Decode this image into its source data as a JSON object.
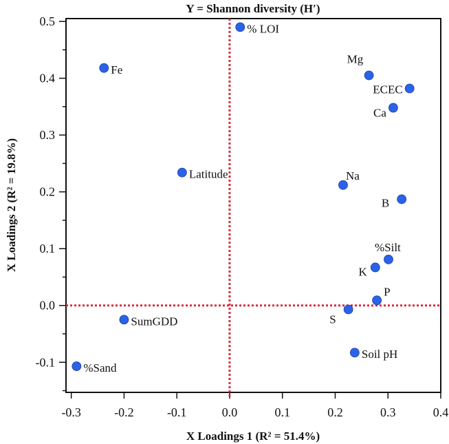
{
  "chart_data": {
    "type": "scatter",
    "title": "Y = Shannon diversity (H′)",
    "xlabel": "X Loadings 1 (R² = 51.4%)",
    "ylabel": "X Loadings 2 (R² = 19.8%)",
    "xlim": [
      -0.31,
      0.4
    ],
    "ylim": [
      -0.153,
      0.505
    ],
    "xticks": [
      "-0.3",
      "-0.2",
      "-0.1",
      "0.0",
      "0.1",
      "0.2",
      "0.3",
      "0.4"
    ],
    "yticks": [
      "-0.1",
      "0.0",
      "0.1",
      "0.2",
      "0.3",
      "0.4",
      "0.5"
    ],
    "grid": false,
    "reference_lines": {
      "x": 0,
      "y": 0,
      "color": "#e0283c",
      "style": "dotted"
    },
    "marker_color": "#2b63e8",
    "points": [
      {
        "label": "% LOI",
        "x": 0.02,
        "y": 0.49
      },
      {
        "label": "Fe",
        "x": -0.238,
        "y": 0.418
      },
      {
        "label": "Mg",
        "x": 0.264,
        "y": 0.405
      },
      {
        "label": "ECEC",
        "x": 0.341,
        "y": 0.382
      },
      {
        "label": "Ca",
        "x": 0.31,
        "y": 0.348
      },
      {
        "label": "Latitude",
        "x": -0.09,
        "y": 0.234
      },
      {
        "label": "Na",
        "x": 0.215,
        "y": 0.212
      },
      {
        "label": "B",
        "x": 0.326,
        "y": 0.187
      },
      {
        "label": "%Silt",
        "x": 0.301,
        "y": 0.081
      },
      {
        "label": "K",
        "x": 0.276,
        "y": 0.067
      },
      {
        "label": "P",
        "x": 0.279,
        "y": 0.009
      },
      {
        "label": "S",
        "x": 0.225,
        "y": -0.007
      },
      {
        "label": "SumGDD",
        "x": -0.2,
        "y": -0.025
      },
      {
        "label": "Soil pH",
        "x": 0.237,
        "y": -0.083
      },
      {
        "label": "%Sand",
        "x": -0.29,
        "y": -0.107
      }
    ]
  }
}
